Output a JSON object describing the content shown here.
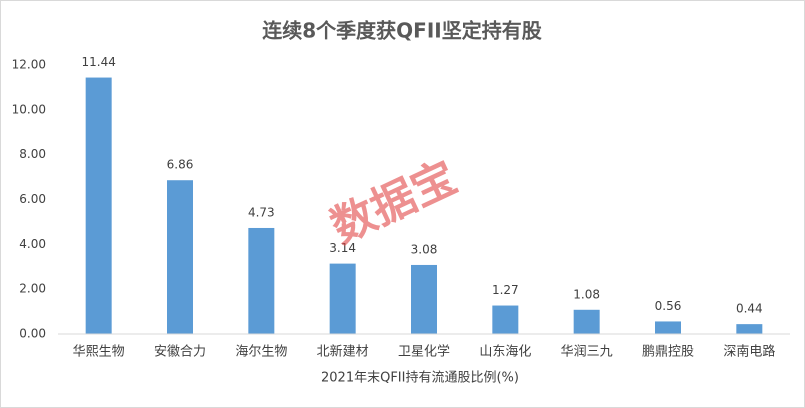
{
  "chart_data": {
    "type": "bar",
    "title": "连续8个季度获QFII坚定持有股",
    "x_label": "2021年末QFII持有流通股比例(%)",
    "watermark": "数据宝",
    "categories": [
      "华熙生物",
      "安徽合力",
      "海尔生物",
      "北新建材",
      "卫星化学",
      "山东海化",
      "华润三九",
      "鹏鼎控股",
      "深南电路"
    ],
    "values": [
      11.44,
      6.86,
      4.73,
      3.14,
      3.08,
      1.27,
      1.08,
      0.56,
      0.44
    ],
    "color": "#5b9bd5",
    "ylim": [
      0,
      12
    ],
    "yticks": [
      {
        "value": 0,
        "label": "0.00"
      },
      {
        "value": 2,
        "label": "2.00"
      },
      {
        "value": 4,
        "label": "4.00"
      },
      {
        "value": 6,
        "label": "6.00"
      },
      {
        "value": 8,
        "label": "8.00"
      },
      {
        "value": 10,
        "label": "10.00"
      },
      {
        "value": 12,
        "label": "12.00"
      }
    ],
    "grid": false
  }
}
